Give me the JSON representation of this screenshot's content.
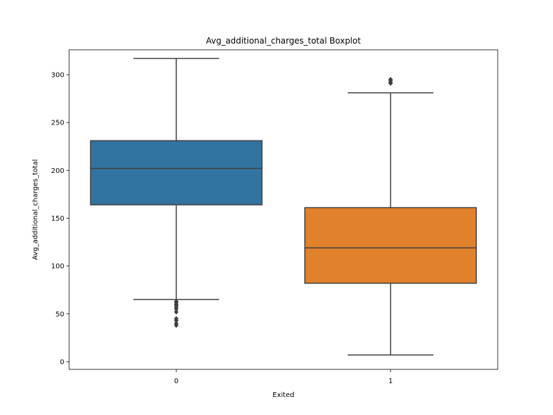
{
  "chart_data": {
    "type": "boxplot",
    "title": "Avg_additional_charges_total Boxplot",
    "xlabel": "Exited",
    "ylabel": "Avg_additional_charges_total",
    "ylim": [
      -8,
      326
    ],
    "yticks": [
      0,
      50,
      100,
      150,
      200,
      250,
      300
    ],
    "categories": [
      "0",
      "1"
    ],
    "grid": false,
    "legend": "none",
    "boxes": [
      {
        "category": "0",
        "color": "#3274a1",
        "whisker_low": 65,
        "q1": 164,
        "median": 202,
        "q3": 231,
        "whisker_high": 317,
        "outliers": [
          38,
          40,
          43,
          45,
          52,
          55,
          57,
          59,
          60,
          62,
          63
        ]
      },
      {
        "category": "1",
        "color": "#e1812c",
        "whisker_low": 7,
        "q1": 82,
        "median": 119,
        "q3": 161,
        "whisker_high": 281,
        "outliers": [
          291,
          292,
          294,
          295
        ]
      }
    ]
  }
}
